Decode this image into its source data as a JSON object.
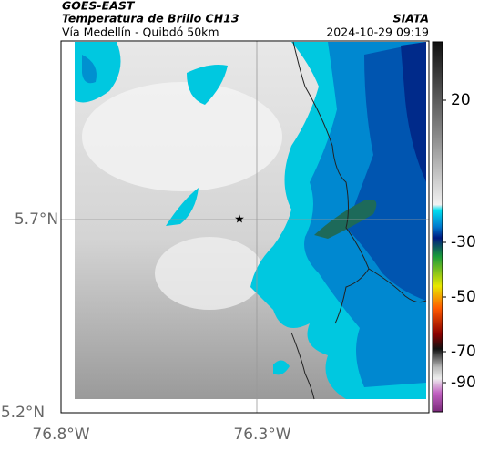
{
  "header": {
    "satellite": "GOES-EAST",
    "product": "Temperatura de Brillo CH13",
    "route": "Vía Medellín - Quibdó 50km",
    "source": "SIATA",
    "datetime": "2024-10-29 09:19"
  },
  "axes": {
    "lat_labels": [
      "5.7°N",
      "5.2°N"
    ],
    "lon_labels": [
      "76.8°W",
      "76.3°W"
    ]
  },
  "colorbar": {
    "ticks": [
      20,
      -30,
      -50,
      -70,
      -90
    ]
  }
}
